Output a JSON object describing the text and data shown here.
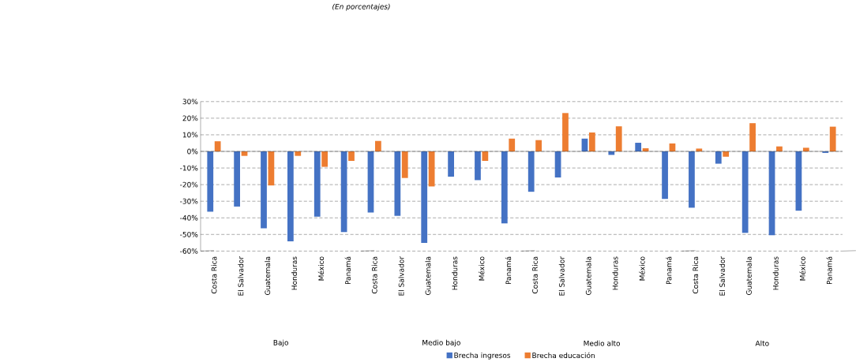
{
  "chart_data": {
    "type": "bar",
    "title": "(En porcentajes)",
    "categories": [
      "Costa Rica",
      "El Salvador",
      "Guatemala",
      "Honduras",
      "México",
      "Panamá",
      "Costa Rica",
      "El Salvador",
      "Guatemala",
      "Honduras",
      "México",
      "Panamá",
      "Costa Rica",
      "El Salvador",
      "Guatemala",
      "Honduras",
      "México",
      "Panamá",
      "Costa Rica",
      "El Salvador",
      "Guatemala",
      "Honduras",
      "México",
      "Panamá"
    ],
    "series": [
      {
        "name": "Brecha ingresos",
        "color": "#4472c4",
        "values": [
          -36.3,
          -33.2,
          -46.3,
          -54.2,
          -39.3,
          -48.6,
          -36.8,
          -38.8,
          -55.1,
          -15.2,
          -17.3,
          -43.3,
          -24.3,
          -15.7,
          7.7,
          -2.1,
          5.2,
          -28.6,
          -33.9,
          -7.4,
          -49.0,
          -50.5,
          -35.7,
          -0.9
        ]
      },
      {
        "name": "Brecha educación",
        "color": "#ed7d31",
        "values": [
          6.1,
          -2.7,
          -20.5,
          -2.7,
          -9.3,
          -5.7,
          6.3,
          -16.0,
          -21.1,
          0,
          -5.7,
          7.7,
          6.8,
          23.1,
          11.4,
          15.1,
          1.9,
          4.8,
          1.7,
          -3.2,
          17.0,
          3.0,
          2.2,
          14.9
        ]
      }
    ],
    "annotations": [
      "Bajo",
      "Medio bajo",
      "Medio alto",
      "Alto"
    ],
    "ylim": [
      -60,
      30
    ],
    "yticks": [
      {
        "value": -60,
        "label": "-60%"
      },
      {
        "value": -50,
        "label": "-50%"
      },
      {
        "value": -40,
        "label": "-40%"
      },
      {
        "value": -30,
        "label": "-30%"
      },
      {
        "value": -20,
        "label": "-20%"
      },
      {
        "value": -10,
        "label": "-10%"
      },
      {
        "value": 0,
        "label": "0%"
      },
      {
        "value": 10,
        "label": "10%"
      },
      {
        "value": 20,
        "label": "20%"
      },
      {
        "value": 30,
        "label": "30%"
      }
    ],
    "grid": "y",
    "legend": "bottom"
  }
}
